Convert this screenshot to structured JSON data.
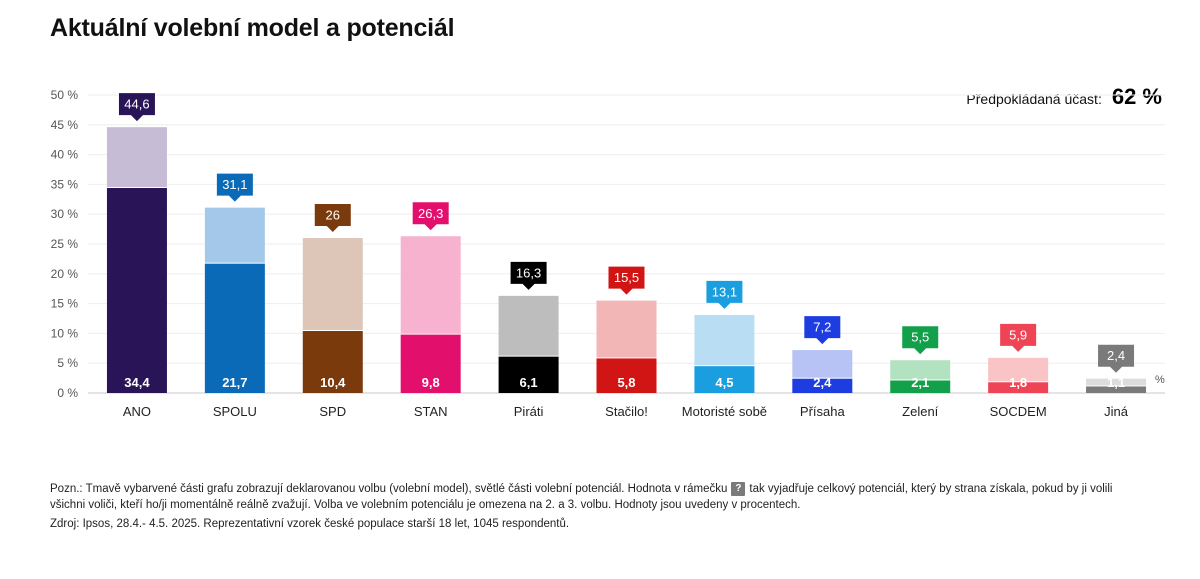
{
  "title": "Aktuální volební model a potenciál",
  "turnout": {
    "label": "Předpokládaná účast:",
    "value": "62 %"
  },
  "note": {
    "part1": "Pozn.: Tmavě vybarvené části grafu zobrazují deklarovanou volbu (volební model), světlé části volební potenciál. Hodnota v rámečku",
    "icon_glyph": "?",
    "part2": "tak vyjadřuje celkový potenciál, který by strana získala, pokud by ji volili všichni voliči, kteří ho/ji momentálně reálně zvažují. Volba ve volebním potenciálu je omezena na 2. a 3. volbu. Hodnoty jsou uvedeny v procentech."
  },
  "source": "Zdroj: Ipsos, 28.4.- 4.5. 2025. Reprezentativní vzorek české populace starší 18 let, 1045 respondentů.",
  "chart_data": {
    "type": "bar",
    "title": "Aktuální volební model a potenciál",
    "ylim": [
      0,
      50
    ],
    "y_ticks": [
      0,
      5,
      10,
      15,
      20,
      25,
      30,
      35,
      40,
      45,
      50
    ],
    "y_tick_labels": [
      "0 %",
      "5 %",
      "10 %",
      "15 %",
      "20 %",
      "25 %",
      "30 %",
      "35 %",
      "40 %",
      "45 %",
      "50 %"
    ],
    "unit_label": "%",
    "grid": true,
    "series": [
      {
        "name": "volební model",
        "values": [
          34.4,
          21.7,
          10.4,
          9.8,
          6.1,
          5.8,
          4.5,
          2.4,
          2.1,
          1.8,
          1.1
        ]
      },
      {
        "name": "volební potenciál",
        "values": [
          44.6,
          31.1,
          26,
          26.3,
          16.3,
          15.5,
          13.1,
          7.2,
          5.5,
          5.9,
          2.4
        ]
      }
    ],
    "categories": [
      "ANO",
      "SPOLU",
      "SPD",
      "STAN",
      "Piráti",
      "Stačilo!",
      "Motoristé sobě",
      "Přísaha",
      "Zelení",
      "SOCDEM",
      "Jiná"
    ],
    "model_labels": [
      "34,4",
      "21,7",
      "10,4",
      "9,8",
      "6,1",
      "5,8",
      "4,5",
      "2,4",
      "2,1",
      "1,8",
      "1,1"
    ],
    "potential_labels": [
      "44,6",
      "31,1",
      "26",
      "26,3",
      "16,3",
      "15,5",
      "13,1",
      "7,2",
      "5,5",
      "5,9",
      "2,4"
    ],
    "colors": {
      "dark": [
        "#2a1458",
        "#0a6ab8",
        "#7a3a0c",
        "#e2106c",
        "#000000",
        "#d11414",
        "#1a9ee0",
        "#1e3de0",
        "#12a04a",
        "#ee4455",
        "#7a7a7a"
      ],
      "light": [
        "#c6bcd6",
        "#a3c8ea",
        "#ddc6b8",
        "#f6b2ce",
        "#bdbdbd",
        "#f3b6b6",
        "#b9def4",
        "#b7c3f5",
        "#b3e2c0",
        "#f8c4c6",
        "#dcdcdc"
      ],
      "badge": [
        "#2a1458",
        "#0a6ab8",
        "#7a3a0c",
        "#e2106c",
        "#000000",
        "#d11414",
        "#1a9ee0",
        "#1e3de0",
        "#12a04a",
        "#ee4455",
        "#7a7a7a"
      ]
    }
  }
}
